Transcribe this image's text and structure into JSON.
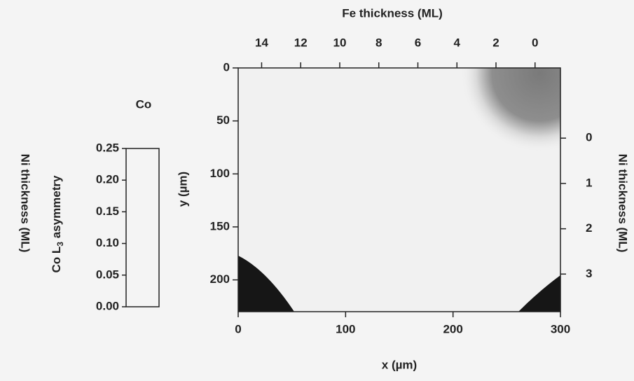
{
  "chart_data": {
    "type": "heatmap",
    "xlabel": "x (µm)",
    "ylabel": "y (µm)",
    "xlim": [
      0,
      300
    ],
    "xticks": [
      0,
      100,
      200,
      300
    ],
    "ylim": [
      0,
      230
    ],
    "yticks": [
      0,
      50,
      100,
      150,
      200
    ],
    "x2label": "Fe thickness (ML)",
    "x2lim": [
      15.2,
      -1.3
    ],
    "x2ticks": [
      14,
      12,
      10,
      8,
      6,
      4,
      2,
      0
    ],
    "y2label": "Ni thickness (ML)",
    "y2lim": [
      -1.55,
      3.83
    ],
    "y2ticks": [
      0,
      1,
      2,
      3
    ],
    "colorbar": {
      "title": "Co",
      "label_parts": [
        "Co L",
        "3",
        " asymmetry"
      ],
      "outer_label": "Ni thickness (ML)",
      "lim": [
        0,
        0.25
      ],
      "ticks": [
        {
          "value": 0,
          "label": "0.00"
        },
        {
          "value": 0.05,
          "label": "0.05"
        },
        {
          "value": 0.1,
          "label": "0.10"
        },
        {
          "value": 0.15,
          "label": "0.15"
        },
        {
          "value": 0.2,
          "label": "0.20"
        },
        {
          "value": 0.25,
          "label": "0.25"
        }
      ],
      "colors": [
        "#161616",
        "#ffffff"
      ]
    }
  }
}
